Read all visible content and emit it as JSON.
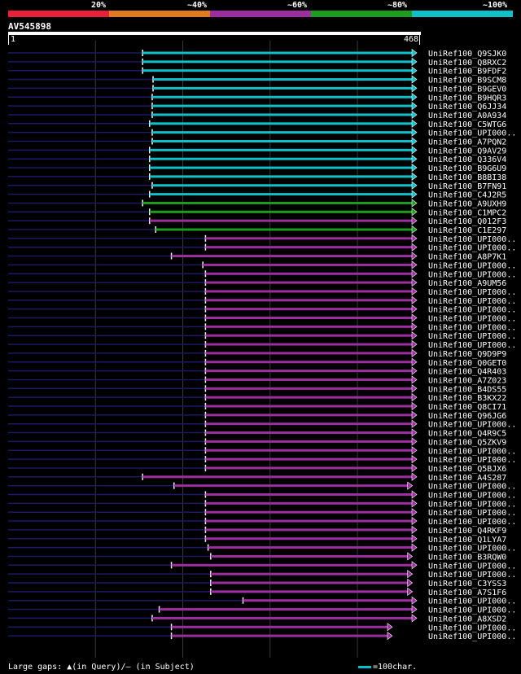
{
  "header": {
    "identity_labels": [
      "20%",
      "~40%",
      "~60%",
      "~80%",
      "~100%"
    ],
    "identity_colors": [
      "#e8203a",
      "#e07a1f",
      "#9c2ea0",
      "#1d9c1d",
      "#10c0c8"
    ],
    "query_name": "AV545898",
    "ruler_start": "1",
    "ruler_end": "468"
  },
  "footer": {
    "gaps_legend": "Large gaps: ▲(in Query)/— (in Subject)",
    "scale_legend": "=100char."
  },
  "chart_data": {
    "type": "alignment",
    "query_length": 468,
    "hits": [
      {
        "name": "UniRef100_Q9SJK0",
        "start": 155,
        "end": 468,
        "identity": "~100%"
      },
      {
        "name": "UniRef100_Q8RXC2",
        "start": 155,
        "end": 468,
        "identity": "~100%"
      },
      {
        "name": "UniRef100_B9FDF2",
        "start": 155,
        "end": 468,
        "identity": "~100%"
      },
      {
        "name": "UniRef100_B9SCM8",
        "start": 167,
        "end": 468,
        "identity": "~100%"
      },
      {
        "name": "UniRef100_B9GEV0",
        "start": 167,
        "end": 468,
        "identity": "~100%"
      },
      {
        "name": "UniRef100_B9HQR3",
        "start": 166,
        "end": 468,
        "identity": "~100%"
      },
      {
        "name": "UniRef100_Q6JJ34",
        "start": 166,
        "end": 468,
        "identity": "~100%"
      },
      {
        "name": "UniRef100_A0A934",
        "start": 166,
        "end": 468,
        "identity": "~100%"
      },
      {
        "name": "UniRef100_C5WTG6",
        "start": 163,
        "end": 468,
        "identity": "~100%"
      },
      {
        "name": "UniRef100_UPI000..",
        "start": 166,
        "end": 468,
        "identity": "~100%"
      },
      {
        "name": "UniRef100_A7PQN2",
        "start": 166,
        "end": 468,
        "identity": "~100%"
      },
      {
        "name": "UniRef100_Q9AV29",
        "start": 163,
        "end": 468,
        "identity": "~100%"
      },
      {
        "name": "UniRef100_Q336V4",
        "start": 163,
        "end": 468,
        "identity": "~100%"
      },
      {
        "name": "UniRef100_B9G6U9",
        "start": 163,
        "end": 468,
        "identity": "~100%"
      },
      {
        "name": "UniRef100_B8BI38",
        "start": 163,
        "end": 468,
        "identity": "~100%"
      },
      {
        "name": "UniRef100_B7FN91",
        "start": 166,
        "end": 468,
        "identity": "~100%"
      },
      {
        "name": "UniRef100_C4J2R5",
        "start": 163,
        "end": 468,
        "identity": "~100%"
      },
      {
        "name": "UniRef100_A9UXH9",
        "start": 155,
        "end": 468,
        "identity": "~80%"
      },
      {
        "name": "UniRef100_C1MPC2",
        "start": 163,
        "end": 468,
        "identity": "~80%"
      },
      {
        "name": "UniRef100_Q012F3",
        "start": 163,
        "end": 468,
        "identity": "~60%"
      },
      {
        "name": "UniRef100_C1E297",
        "start": 170,
        "end": 468,
        "identity": "~80%"
      },
      {
        "name": "UniRef100_UPI000..",
        "start": 227,
        "end": 468,
        "identity": "~60%"
      },
      {
        "name": "UniRef100_UPI000..",
        "start": 227,
        "end": 468,
        "identity": "~60%"
      },
      {
        "name": "UniRef100_A8P7K1",
        "start": 188,
        "end": 468,
        "identity": "~60%"
      },
      {
        "name": "UniRef100_UPI000..",
        "start": 224,
        "end": 468,
        "identity": "~60%"
      },
      {
        "name": "UniRef100_UPI000..",
        "start": 227,
        "end": 468,
        "identity": "~60%"
      },
      {
        "name": "UniRef100_A9UM56",
        "start": 227,
        "end": 468,
        "identity": "~60%"
      },
      {
        "name": "UniRef100_UPI000..",
        "start": 227,
        "end": 468,
        "identity": "~60%"
      },
      {
        "name": "UniRef100_UPI000..",
        "start": 227,
        "end": 468,
        "identity": "~60%"
      },
      {
        "name": "UniRef100_UPI000..",
        "start": 227,
        "end": 468,
        "identity": "~60%"
      },
      {
        "name": "UniRef100_UPI000..",
        "start": 227,
        "end": 468,
        "identity": "~60%"
      },
      {
        "name": "UniRef100_UPI000..",
        "start": 227,
        "end": 468,
        "identity": "~60%"
      },
      {
        "name": "UniRef100_UPI000..",
        "start": 227,
        "end": 468,
        "identity": "~60%"
      },
      {
        "name": "UniRef100_UPI000..",
        "start": 227,
        "end": 468,
        "identity": "~60%"
      },
      {
        "name": "UniRef100_Q9D9P9",
        "start": 227,
        "end": 468,
        "identity": "~60%"
      },
      {
        "name": "UniRef100_Q0GET0",
        "start": 227,
        "end": 468,
        "identity": "~60%"
      },
      {
        "name": "UniRef100_Q4R403",
        "start": 227,
        "end": 468,
        "identity": "~60%"
      },
      {
        "name": "UniRef100_A7Z023",
        "start": 227,
        "end": 468,
        "identity": "~60%"
      },
      {
        "name": "UniRef100_B4DS55",
        "start": 227,
        "end": 468,
        "identity": "~60%"
      },
      {
        "name": "UniRef100_B3KX22",
        "start": 227,
        "end": 468,
        "identity": "~60%"
      },
      {
        "name": "UniRef100_Q8CI71",
        "start": 227,
        "end": 468,
        "identity": "~60%"
      },
      {
        "name": "UniRef100_Q96JG6",
        "start": 227,
        "end": 468,
        "identity": "~60%"
      },
      {
        "name": "UniRef100_UPI000..",
        "start": 227,
        "end": 468,
        "identity": "~60%"
      },
      {
        "name": "UniRef100_Q4R9C5",
        "start": 227,
        "end": 468,
        "identity": "~60%"
      },
      {
        "name": "UniRef100_Q5ZKV9",
        "start": 227,
        "end": 468,
        "identity": "~60%"
      },
      {
        "name": "UniRef100_UPI000..",
        "start": 227,
        "end": 468,
        "identity": "~60%"
      },
      {
        "name": "UniRef100_UPI000..",
        "start": 227,
        "end": 468,
        "identity": "~60%"
      },
      {
        "name": "UniRef100_Q5BJX6",
        "start": 227,
        "end": 468,
        "identity": "~60%"
      },
      {
        "name": "UniRef100_A4S287",
        "start": 155,
        "end": 468,
        "identity": "~60%"
      },
      {
        "name": "UniRef100_UPI000..",
        "start": 191,
        "end": 463,
        "identity": "~60%"
      },
      {
        "name": "UniRef100_UPI000..",
        "start": 227,
        "end": 468,
        "identity": "~60%"
      },
      {
        "name": "UniRef100_UPI000..",
        "start": 227,
        "end": 468,
        "identity": "~60%"
      },
      {
        "name": "UniRef100_UPI000..",
        "start": 227,
        "end": 468,
        "identity": "~60%"
      },
      {
        "name": "UniRef100_UPI000..",
        "start": 227,
        "end": 468,
        "identity": "~60%"
      },
      {
        "name": "UniRef100_Q4RKF9",
        "start": 227,
        "end": 468,
        "identity": "~60%"
      },
      {
        "name": "UniRef100_Q1LYA7",
        "start": 227,
        "end": 468,
        "identity": "~60%"
      },
      {
        "name": "UniRef100_UPI000..",
        "start": 230,
        "end": 468,
        "identity": "~60%"
      },
      {
        "name": "UniRef100_B3RQW0",
        "start": 233,
        "end": 463,
        "identity": "~60%"
      },
      {
        "name": "UniRef100_UPI000..",
        "start": 188,
        "end": 468,
        "identity": "~60%"
      },
      {
        "name": "UniRef100_UPI000..",
        "start": 233,
        "end": 463,
        "identity": "~60%"
      },
      {
        "name": "UniRef100_C3YSS3",
        "start": 233,
        "end": 463,
        "identity": "~60%"
      },
      {
        "name": "UniRef100_A7S1F6",
        "start": 233,
        "end": 463,
        "identity": "~60%"
      },
      {
        "name": "UniRef100_UPI000..",
        "start": 270,
        "end": 468,
        "identity": "~60%"
      },
      {
        "name": "UniRef100_UPI000..",
        "start": 174,
        "end": 468,
        "identity": "~60%"
      },
      {
        "name": "UniRef100_A8XSD2",
        "start": 166,
        "end": 468,
        "identity": "~60%"
      },
      {
        "name": "UniRef100_UPI000..",
        "start": 188,
        "end": 440,
        "identity": "~60%"
      },
      {
        "name": "UniRef100_UPI000..",
        "start": 188,
        "end": 440,
        "identity": "~60%"
      }
    ]
  }
}
